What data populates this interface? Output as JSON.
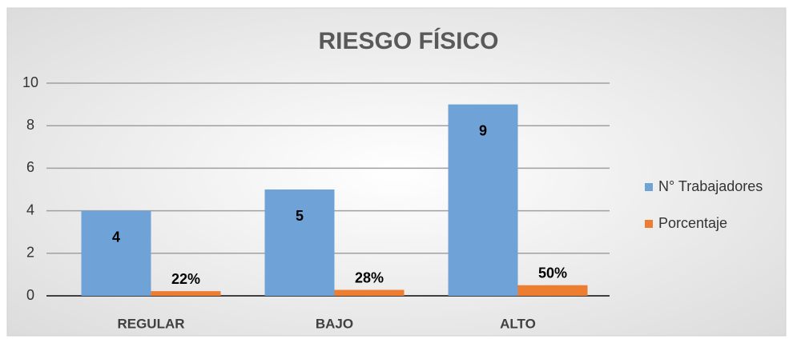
{
  "chart_data": {
    "type": "bar",
    "title": "RIESGO FÍSICO",
    "categories": [
      "REGULAR",
      "BAJO",
      "ALTO"
    ],
    "series": [
      {
        "name": "N° Trabajadores",
        "color": "#6fa3d8",
        "values": [
          4,
          5,
          9
        ]
      },
      {
        "name": "Porcentaje",
        "color": "#ed7d31",
        "values": [
          0.22,
          0.28,
          0.5
        ],
        "value_labels": [
          "22%",
          "28%",
          "50%"
        ]
      }
    ],
    "ylim": [
      0,
      10
    ],
    "yticks": [
      0,
      2,
      4,
      6,
      8,
      10
    ],
    "grid": true,
    "legend": "right"
  }
}
